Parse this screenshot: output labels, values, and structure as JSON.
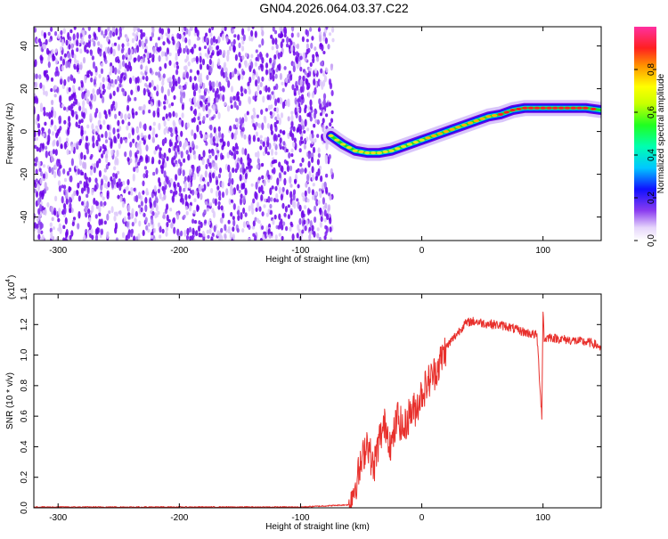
{
  "title": "GN04.2026.064.03.37.C22",
  "colors": {
    "line": "#e8302c",
    "speckle_dark": "#6a00e8",
    "speckle_light": "#c9a6f5",
    "frame": "#000000"
  },
  "chart_data": [
    {
      "type": "heatmap",
      "title": "GN04.2026.064.03.37.C22",
      "xlabel": "Height of straight line (km)",
      "ylabel": "Frequency (Hz)",
      "xlim": [
        -320,
        148
      ],
      "ylim": [
        -51,
        49
      ],
      "xticks": [
        -300,
        -200,
        -100,
        0,
        100
      ],
      "yticks": [
        -40,
        -20,
        0,
        20,
        40
      ],
      "colorbar": {
        "label": "Normalized spectral amplitude",
        "range": [
          0,
          1
        ],
        "ticks": [
          0.0,
          0.2,
          0.4,
          0.6,
          0.8
        ]
      },
      "noise_region_x": [
        -320,
        -73
      ],
      "signal_track": {
        "x": [
          -75,
          -65,
          -55,
          -45,
          -35,
          -25,
          -15,
          -5,
          5,
          15,
          25,
          35,
          45,
          55,
          65,
          75,
          85,
          95,
          105,
          115,
          125,
          135,
          148
        ],
        "y": [
          -2,
          -6,
          -9,
          -10,
          -10,
          -9,
          -7,
          -5,
          -3,
          -1,
          1,
          3,
          5,
          7,
          8,
          10,
          11,
          11,
          11,
          11,
          11,
          11,
          10
        ]
      },
      "grid": false
    },
    {
      "type": "line",
      "xlabel": "Height of straight line (km)",
      "ylabel": "SNR (10 * v/v)",
      "multiplier_label": "(x10",
      "multiplier_exp": "4",
      "multiplier_close": ")",
      "xlim": [
        -320,
        148
      ],
      "ylim": [
        0,
        1.4
      ],
      "xticks": [
        -300,
        -200,
        -100,
        0,
        100
      ],
      "yticks": [
        "0.0",
        "0.2",
        "0.4",
        "0.6",
        "0.8",
        "1.0",
        "1.2",
        "1.4"
      ],
      "series": [
        {
          "x": [
            -320,
            -200,
            -100,
            -60,
            -55,
            -50,
            -45,
            -40,
            -35,
            -30,
            -25,
            -20,
            -15,
            -10,
            -5,
            0,
            5,
            10,
            15,
            20,
            25,
            30,
            35,
            40,
            45,
            50,
            60,
            70,
            80,
            90,
            95,
            99,
            100,
            101,
            105,
            110,
            120,
            130,
            140,
            148
          ],
          "values": [
            0.005,
            0.005,
            0.005,
            0.02,
            0.15,
            0.28,
            0.45,
            0.25,
            0.45,
            0.55,
            0.4,
            0.6,
            0.5,
            0.62,
            0.65,
            0.75,
            0.82,
            0.88,
            0.95,
            1.05,
            1.1,
            1.15,
            1.2,
            1.22,
            1.22,
            1.21,
            1.2,
            1.19,
            1.16,
            1.14,
            1.13,
            0.6,
            1.3,
            1.1,
            1.12,
            1.11,
            1.1,
            1.09,
            1.08,
            1.05
          ]
        }
      ],
      "grid": false
    }
  ]
}
